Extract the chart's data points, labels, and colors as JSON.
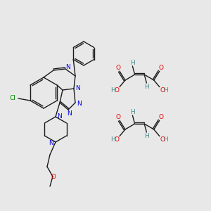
{
  "background_color": "#e8e8e8",
  "figsize": [
    3.0,
    3.0
  ],
  "dpi": 100,
  "C": "#1a1a1a",
  "N": "#0000ee",
  "O": "#ee0000",
  "Cl": "#008000",
  "H": "#4a8a8a"
}
